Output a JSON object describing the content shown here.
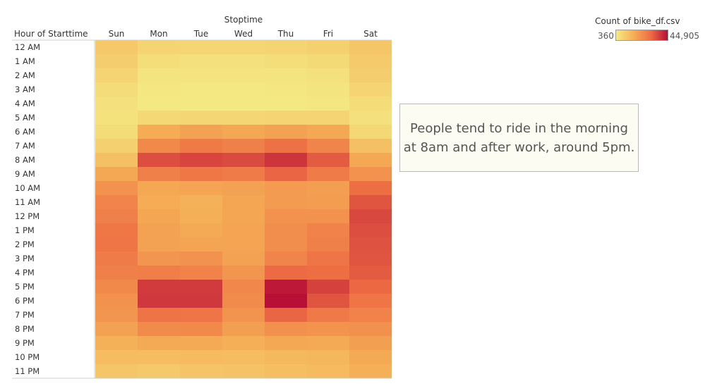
{
  "chart_data": {
    "type": "heatmap",
    "column_axis_title": "Stoptime",
    "row_axis_title": "Hour of Starttime",
    "columns": [
      "Sun",
      "Mon",
      "Tue",
      "Wed",
      "Thu",
      "Fri",
      "Sat"
    ],
    "rows": [
      "12 AM",
      "1 AM",
      "2 AM",
      "3 AM",
      "4 AM",
      "5 AM",
      "6 AM",
      "7 AM",
      "8 AM",
      "9 AM",
      "10 AM",
      "11 AM",
      "12 PM",
      "1 PM",
      "2 PM",
      "3 PM",
      "4 PM",
      "5 PM",
      "6 PM",
      "7 PM",
      "8 PM",
      "9 PM",
      "10 PM",
      "11 PM"
    ],
    "values": [
      [
        9000,
        6000,
        5500,
        5500,
        6000,
        7000,
        9500
      ],
      [
        7500,
        3500,
        3000,
        3000,
        3500,
        4500,
        8500
      ],
      [
        6000,
        2000,
        1800,
        1800,
        2000,
        3000,
        7500
      ],
      [
        4000,
        1200,
        1000,
        1000,
        1200,
        1800,
        6000
      ],
      [
        3000,
        900,
        800,
        800,
        900,
        1200,
        4000
      ],
      [
        2500,
        5000,
        5500,
        5500,
        6000,
        6000,
        3000
      ],
      [
        4000,
        16000,
        18500,
        17000,
        18500,
        17000,
        5000
      ],
      [
        7000,
        24000,
        27500,
        26000,
        29500,
        25000,
        11000
      ],
      [
        11000,
        35000,
        36500,
        35500,
        39000,
        33000,
        17000
      ],
      [
        17000,
        26000,
        28000,
        27000,
        31500,
        27000,
        22000
      ],
      [
        22000,
        17000,
        18000,
        18500,
        20000,
        19000,
        30000
      ],
      [
        25000,
        16000,
        15000,
        17500,
        20000,
        19500,
        34000
      ],
      [
        26000,
        17500,
        15500,
        17500,
        22000,
        22000,
        36000
      ],
      [
        28000,
        18500,
        16500,
        18000,
        23000,
        25500,
        35000
      ],
      [
        28500,
        18500,
        18000,
        18000,
        23000,
        26000,
        34500
      ],
      [
        27000,
        21000,
        22000,
        18500,
        25000,
        28500,
        34000
      ],
      [
        26000,
        26500,
        25500,
        21000,
        30500,
        30000,
        33000
      ],
      [
        24000,
        38000,
        38000,
        24500,
        43500,
        37000,
        31000
      ],
      [
        22000,
        38500,
        38500,
        23500,
        44905,
        34000,
        28500
      ],
      [
        21000,
        29000,
        28500,
        21500,
        31500,
        27500,
        25500
      ],
      [
        18500,
        23500,
        24000,
        19000,
        22500,
        21500,
        22500
      ],
      [
        15000,
        16500,
        16500,
        15500,
        17000,
        16500,
        19000
      ],
      [
        12000,
        12000,
        12500,
        12000,
        13000,
        13500,
        16500
      ],
      [
        9500,
        9000,
        10000,
        10500,
        11500,
        12500,
        15500
      ]
    ],
    "color_scale": {
      "min": 360,
      "max": 44905,
      "colors": [
        "#f4ea84",
        "#f5b056",
        "#ee6e44",
        "#b80f36"
      ]
    },
    "legend": {
      "title": "Count of bike_df.csv",
      "min_label": "360",
      "max_label": "44,905",
      "placement": "top-right"
    }
  },
  "annotation": {
    "text": "People tend to ride in the morning at 8am and after work, around 5pm."
  }
}
